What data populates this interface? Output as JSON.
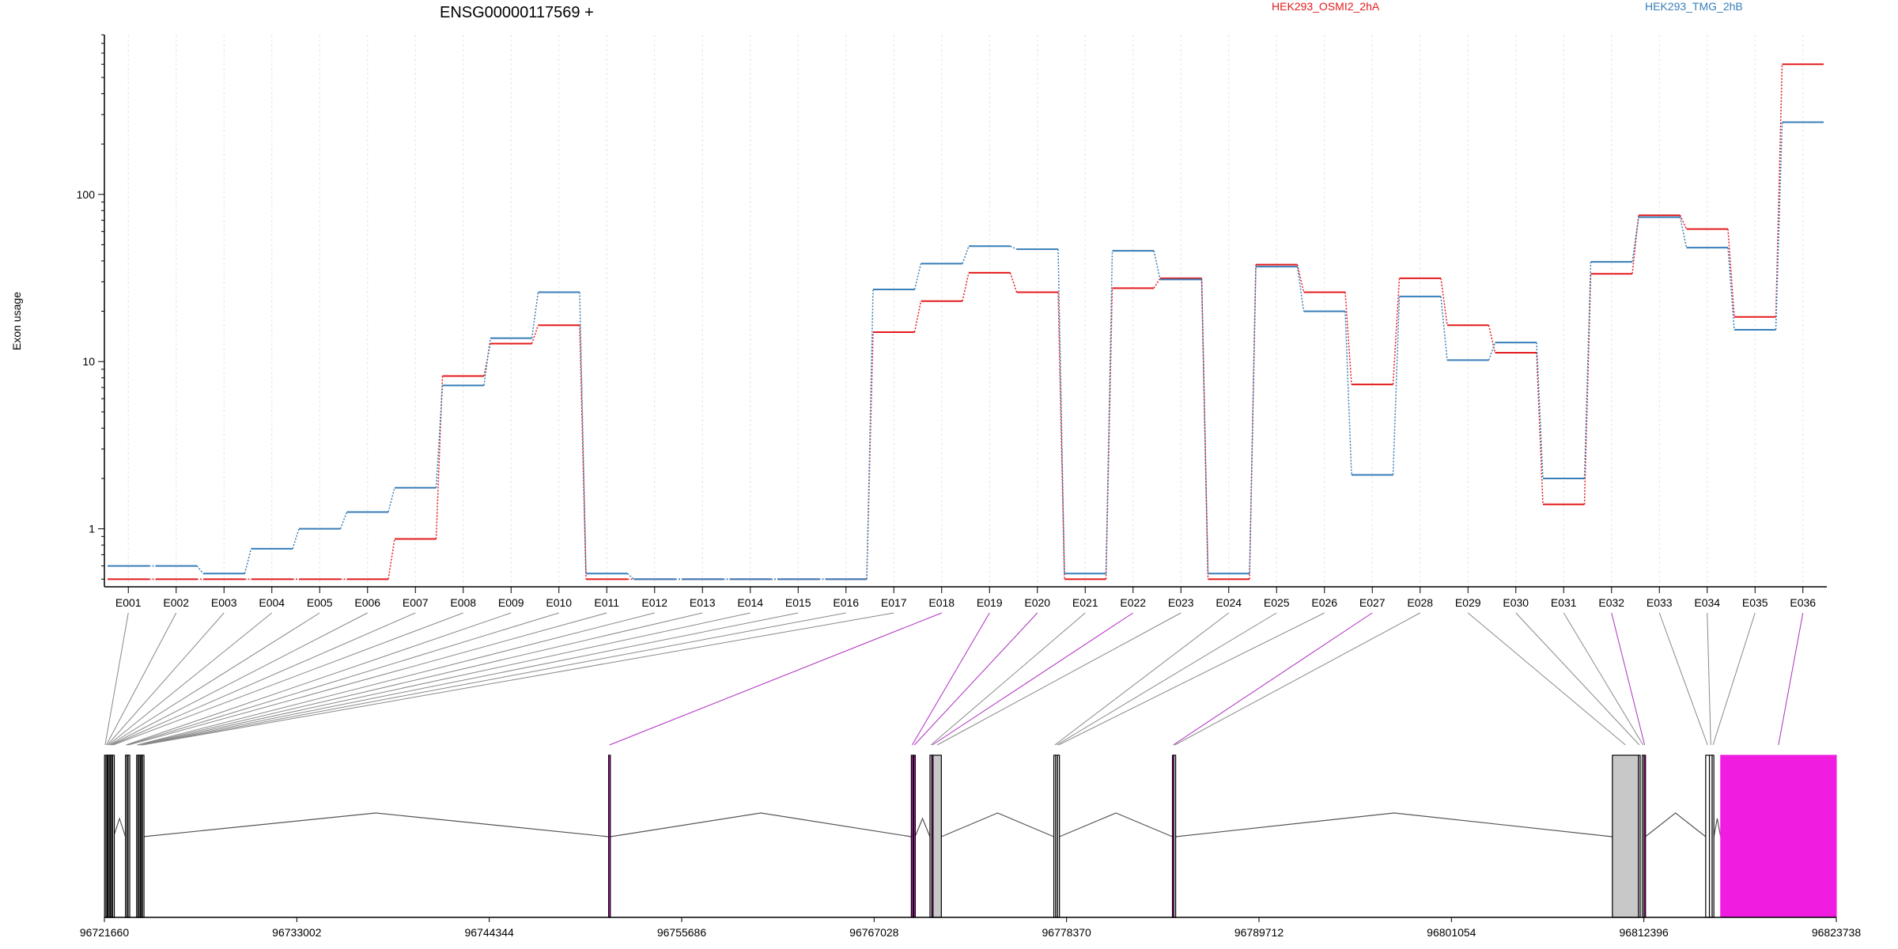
{
  "title": "ENSG00000117569 +",
  "ylabel": "Exon usage",
  "legend": [
    {
      "name": "HEK293_OSMI2_2hA",
      "color": "#e41a1c"
    },
    {
      "name": "HEK293_TMG_2hB",
      "color": "#377eb8"
    }
  ],
  "chart_data": {
    "type": "line",
    "scale": "log",
    "ylim": [
      0.45,
      900
    ],
    "yticks": [
      {
        "value": 1,
        "label": "1"
      },
      {
        "value": 10,
        "label": "10"
      },
      {
        "value": 100,
        "label": "100"
      }
    ],
    "categories": [
      "E001",
      "E002",
      "E003",
      "E004",
      "E005",
      "E006",
      "E007",
      "E008",
      "E009",
      "E010",
      "E011",
      "E012",
      "E013",
      "E014",
      "E015",
      "E016",
      "E017",
      "E018",
      "E019",
      "E020",
      "E021",
      "E022",
      "E023",
      "E024",
      "E025",
      "E026",
      "E027",
      "E028",
      "E029",
      "E030",
      "E031",
      "E032",
      "E033",
      "E034",
      "E035",
      "E036"
    ],
    "series": [
      {
        "name": "HEK293_OSMI2_2hA",
        "color": "#e41a1c",
        "values": [
          0.5,
          0.5,
          0.5,
          0.5,
          0.5,
          0.5,
          0.87,
          8.2,
          12.8,
          16.5,
          0.5,
          0.5,
          0.5,
          0.5,
          0.5,
          0.5,
          15,
          23,
          34,
          26,
          0.5,
          27.5,
          31.5,
          0.5,
          38,
          26,
          7.3,
          31.5,
          16.5,
          11.3,
          1.4,
          33.5,
          75,
          62,
          18.5,
          600
        ]
      },
      {
        "name": "HEK293_TMG_2hB",
        "color": "#377eb8",
        "values": [
          0.6,
          0.6,
          0.54,
          0.76,
          1.0,
          1.26,
          1.76,
          7.2,
          13.8,
          26,
          0.54,
          0.5,
          0.5,
          0.5,
          0.5,
          0.5,
          27,
          38.5,
          49,
          47,
          0.54,
          46,
          31,
          0.54,
          37,
          20,
          2.1,
          24.5,
          10.2,
          13,
          2.0,
          39.5,
          73,
          48,
          15.5,
          270
        ]
      }
    ],
    "genomic_axis": {
      "range": [
        96721660,
        96823738
      ],
      "ticks": [
        "96721660",
        "96733002",
        "96744344",
        "96755686",
        "96767028",
        "96778370",
        "96789712",
        "96801054",
        "96812396",
        "96823738"
      ]
    },
    "exon_highlight": [
      false,
      false,
      false,
      false,
      false,
      false,
      false,
      false,
      false,
      false,
      false,
      false,
      false,
      false,
      false,
      false,
      false,
      true,
      true,
      true,
      false,
      true,
      false,
      false,
      false,
      false,
      true,
      false,
      false,
      false,
      false,
      true,
      false,
      false,
      false,
      true
    ],
    "highlight_color": "#f01de0"
  }
}
